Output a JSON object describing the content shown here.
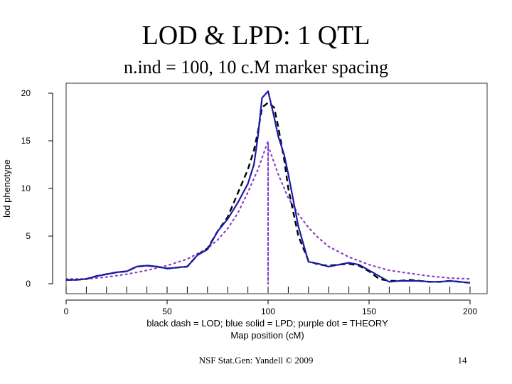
{
  "slide": {
    "title": "LOD & LPD: 1 QTL",
    "subtitle": "n.ind = 100, 10 c.M marker spacing",
    "footer": "NSF Stat.Gen: Yandell © 2009",
    "page_number": "14"
  },
  "chart_data": {
    "type": "line",
    "title": "",
    "xlabel": "Map position (cM)",
    "ylabel": "lod phenotype",
    "legend_caption": "black dash = LOD; blue solid = LPD; purple dot = THEORY",
    "xlim": [
      0,
      200
    ],
    "ylim": [
      0,
      20
    ],
    "x_ticks": [
      0,
      50,
      100,
      150,
      200
    ],
    "y_ticks": [
      0,
      5,
      10,
      15,
      20
    ],
    "marker_positions": [
      0,
      10,
      20,
      30,
      40,
      50,
      60,
      70,
      80,
      90,
      100,
      110,
      120,
      130,
      140,
      150,
      160,
      170,
      180,
      190,
      200
    ],
    "series": [
      {
        "name": "LOD",
        "style": "dashed",
        "color": "#000000",
        "x": [
          0,
          5,
          10,
          15,
          20,
          25,
          30,
          35,
          40,
          45,
          50,
          55,
          60,
          65,
          70,
          75,
          80,
          85,
          90,
          93,
          95,
          97,
          100,
          103,
          105,
          108,
          110,
          115,
          120,
          125,
          130,
          135,
          140,
          145,
          150,
          155,
          160,
          165,
          170,
          175,
          180,
          185,
          190,
          195,
          200
        ],
        "y": [
          0.4,
          0.4,
          0.5,
          0.8,
          1.0,
          1.2,
          1.3,
          1.8,
          1.9,
          1.8,
          1.6,
          1.7,
          1.8,
          3.0,
          3.7,
          5.5,
          7.0,
          9.5,
          12.0,
          14.0,
          16.0,
          18.5,
          19.0,
          18.5,
          16.5,
          13.0,
          10.0,
          5.0,
          2.4,
          2.0,
          1.9,
          2.0,
          2.1,
          1.9,
          1.3,
          0.5,
          0.3,
          0.3,
          0.4,
          0.3,
          0.2,
          0.2,
          0.3,
          0.2,
          0.1
        ]
      },
      {
        "name": "LPD",
        "style": "solid",
        "color": "#1a1aa6",
        "x": [
          0,
          5,
          10,
          15,
          20,
          25,
          30,
          35,
          40,
          45,
          50,
          55,
          60,
          65,
          70,
          75,
          80,
          85,
          90,
          93,
          95,
          97,
          100,
          103,
          105,
          108,
          110,
          115,
          120,
          125,
          130,
          135,
          140,
          145,
          150,
          155,
          160,
          165,
          170,
          175,
          180,
          185,
          190,
          195,
          200
        ],
        "y": [
          0.4,
          0.4,
          0.5,
          0.8,
          1.0,
          1.2,
          1.3,
          1.8,
          1.9,
          1.8,
          1.6,
          1.7,
          1.8,
          3.0,
          3.6,
          5.5,
          6.8,
          8.5,
          10.5,
          12.5,
          15.5,
          19.5,
          20.2,
          17.5,
          15.5,
          13.5,
          11.5,
          6.0,
          2.3,
          2.1,
          1.8,
          2.0,
          2.2,
          2.0,
          1.4,
          0.8,
          0.2,
          0.3,
          0.3,
          0.3,
          0.2,
          0.2,
          0.3,
          0.2,
          0.1
        ]
      },
      {
        "name": "THEORY",
        "style": "dotted",
        "color": "#8b3fc8",
        "x": [
          0,
          10,
          20,
          30,
          40,
          50,
          60,
          70,
          75,
          80,
          85,
          90,
          95,
          100,
          100,
          100,
          105,
          110,
          115,
          120,
          125,
          130,
          140,
          150,
          160,
          170,
          180,
          190,
          200
        ],
        "y": [
          0.5,
          0.5,
          0.7,
          1.0,
          1.4,
          1.9,
          2.6,
          3.7,
          4.6,
          5.8,
          7.4,
          9.6,
          12.0,
          15.0,
          0.0,
          14.5,
          11.5,
          9.0,
          7.3,
          5.9,
          4.8,
          3.9,
          2.8,
          2.0,
          1.4,
          1.1,
          0.8,
          0.6,
          0.5
        ]
      }
    ]
  }
}
